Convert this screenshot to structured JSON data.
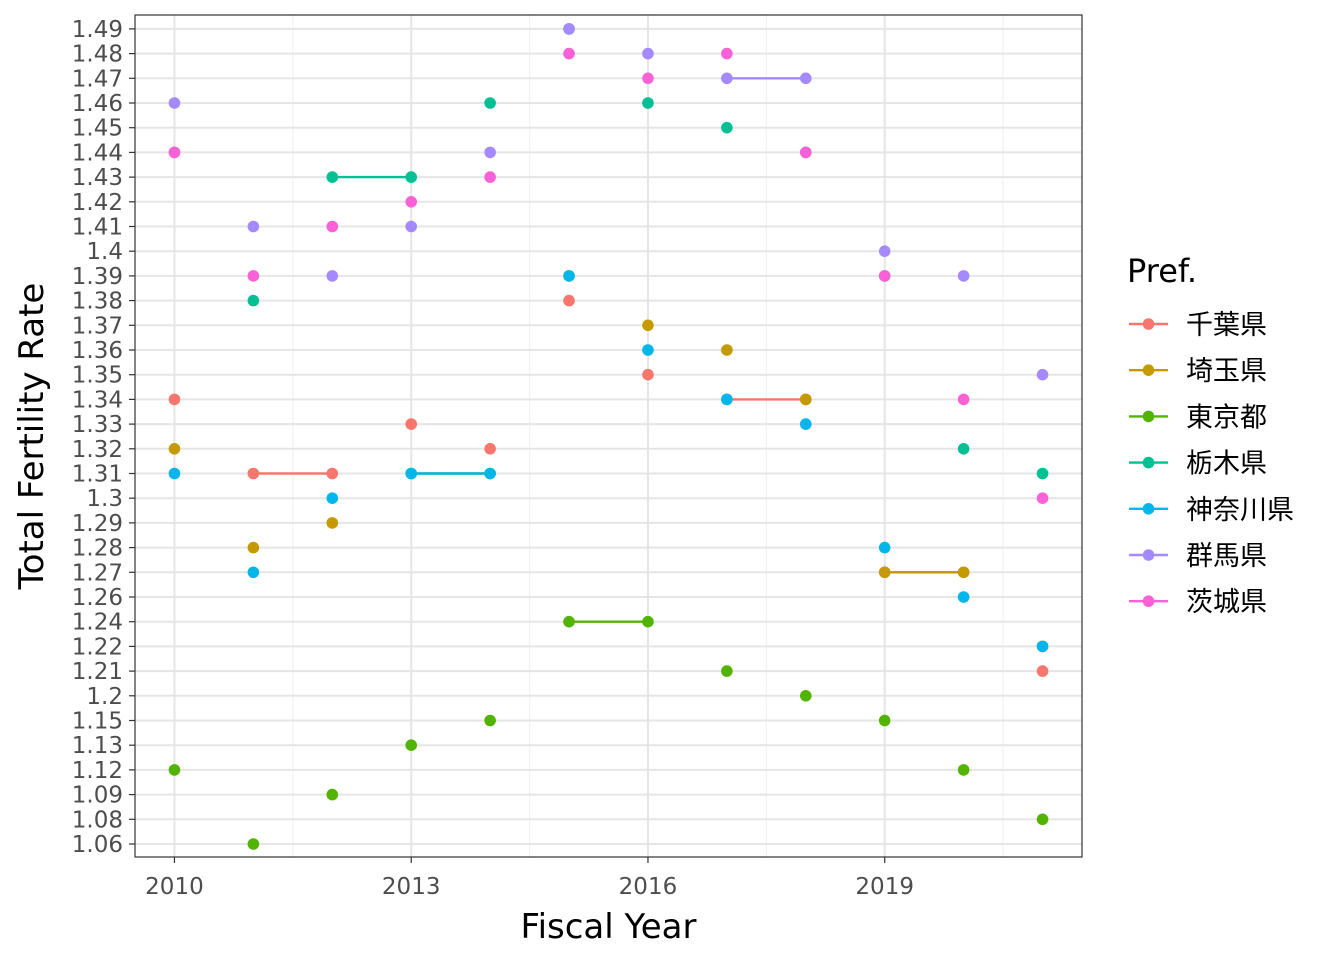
{
  "chart_data": {
    "type": "line",
    "xlabel": "Fiscal Year",
    "ylabel": "Total Fertility Rate",
    "legend_title": "Pref.",
    "legend_position": "right",
    "grid": true,
    "xlim": [
      2009.5,
      2021.5
    ],
    "x_ticks": [
      2010,
      2013,
      2016,
      2019
    ],
    "x_tick_labels": [
      "2010",
      "2013",
      "2016",
      "2019"
    ],
    "y_levels": [
      "1.06",
      "1.08",
      "1.09",
      "1.12",
      "1.13",
      "1.15",
      "1.2",
      "1.21",
      "1.22",
      "1.24",
      "1.26",
      "1.27",
      "1.28",
      "1.29",
      "1.3",
      "1.31",
      "1.32",
      "1.33",
      "1.34",
      "1.35",
      "1.36",
      "1.37",
      "1.38",
      "1.39",
      "1.4",
      "1.41",
      "1.42",
      "1.43",
      "1.44",
      "1.45",
      "1.46",
      "1.47",
      "1.48",
      "1.49"
    ],
    "series": [
      {
        "name": "千葉県",
        "color": "#F8766D",
        "points": [
          [
            2010,
            "1.34"
          ],
          [
            2011,
            "1.31"
          ],
          [
            2012,
            "1.31"
          ],
          [
            2013,
            "1.33"
          ],
          [
            2014,
            "1.32"
          ],
          [
            2015,
            "1.38"
          ],
          [
            2016,
            "1.35"
          ],
          [
            2017,
            "1.34"
          ],
          [
            2018,
            "1.34"
          ],
          [
            2019,
            "1.27"
          ],
          [
            2020,
            "1.27"
          ],
          [
            2021,
            "1.21"
          ]
        ]
      },
      {
        "name": "埼玉県",
        "color": "#C49A00",
        "points": [
          [
            2010,
            "1.32"
          ],
          [
            2011,
            "1.28"
          ],
          [
            2012,
            "1.29"
          ],
          [
            2013,
            "1.31"
          ],
          [
            2014,
            "1.31"
          ],
          [
            2015,
            "1.39"
          ],
          [
            2016,
            "1.37"
          ],
          [
            2017,
            "1.36"
          ],
          [
            2018,
            "1.34"
          ],
          [
            2019,
            "1.27"
          ],
          [
            2020,
            "1.27"
          ],
          [
            2021,
            "1.22"
          ]
        ]
      },
      {
        "name": "東京都",
        "color": "#53B400",
        "points": [
          [
            2010,
            "1.12"
          ],
          [
            2011,
            "1.06"
          ],
          [
            2012,
            "1.09"
          ],
          [
            2013,
            "1.13"
          ],
          [
            2014,
            "1.15"
          ],
          [
            2015,
            "1.24"
          ],
          [
            2016,
            "1.24"
          ],
          [
            2017,
            "1.21"
          ],
          [
            2018,
            "1.2"
          ],
          [
            2019,
            "1.15"
          ],
          [
            2020,
            "1.12"
          ],
          [
            2021,
            "1.08"
          ]
        ]
      },
      {
        "name": "栃木県",
        "color": "#00C094",
        "points": [
          [
            2010,
            "1.44"
          ],
          [
            2011,
            "1.38"
          ],
          [
            2012,
            "1.43"
          ],
          [
            2013,
            "1.43"
          ],
          [
            2014,
            "1.46"
          ],
          [
            2015,
            "1.49"
          ],
          [
            2016,
            "1.46"
          ],
          [
            2017,
            "1.45"
          ],
          [
            2018,
            "1.44"
          ],
          [
            2019,
            "1.39"
          ],
          [
            2020,
            "1.32"
          ],
          [
            2021,
            "1.31"
          ]
        ]
      },
      {
        "name": "神奈川県",
        "color": "#00B6EB",
        "points": [
          [
            2010,
            "1.31"
          ],
          [
            2011,
            "1.27"
          ],
          [
            2012,
            "1.3"
          ],
          [
            2013,
            "1.31"
          ],
          [
            2014,
            "1.31"
          ],
          [
            2015,
            "1.39"
          ],
          [
            2016,
            "1.36"
          ],
          [
            2017,
            "1.34"
          ],
          [
            2018,
            "1.33"
          ],
          [
            2019,
            "1.28"
          ],
          [
            2020,
            "1.26"
          ],
          [
            2021,
            "1.22"
          ]
        ]
      },
      {
        "name": "群馬県",
        "color": "#A58AFF",
        "points": [
          [
            2010,
            "1.46"
          ],
          [
            2011,
            "1.41"
          ],
          [
            2012,
            "1.39"
          ],
          [
            2013,
            "1.41"
          ],
          [
            2014,
            "1.44"
          ],
          [
            2015,
            "1.49"
          ],
          [
            2016,
            "1.48"
          ],
          [
            2017,
            "1.47"
          ],
          [
            2018,
            "1.47"
          ],
          [
            2019,
            "1.4"
          ],
          [
            2020,
            "1.39"
          ],
          [
            2021,
            "1.35"
          ]
        ]
      },
      {
        "name": "茨城県",
        "color": "#FB61D7",
        "points": [
          [
            2010,
            "1.44"
          ],
          [
            2011,
            "1.39"
          ],
          [
            2012,
            "1.41"
          ],
          [
            2013,
            "1.42"
          ],
          [
            2014,
            "1.43"
          ],
          [
            2015,
            "1.48"
          ],
          [
            2016,
            "1.47"
          ],
          [
            2017,
            "1.48"
          ],
          [
            2018,
            "1.44"
          ],
          [
            2019,
            "1.39"
          ],
          [
            2020,
            "1.34"
          ],
          [
            2021,
            "1.3"
          ]
        ]
      }
    ]
  }
}
